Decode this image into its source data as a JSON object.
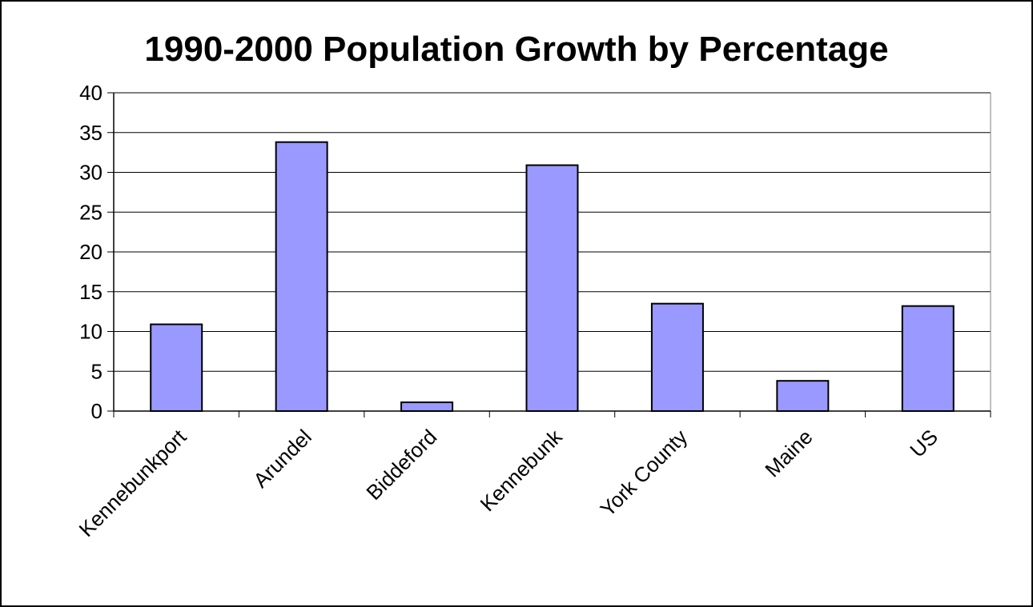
{
  "chart_data": {
    "type": "bar",
    "title": "1990-2000 Population Growth by Percentage",
    "xlabel": "",
    "ylabel": "",
    "categories": [
      "Kennebunkport",
      "Arundel",
      "Biddeford",
      "Kennebunk",
      "York County",
      "Maine",
      "US"
    ],
    "values": [
      10.9,
      33.8,
      1.1,
      30.9,
      13.5,
      3.8,
      13.2
    ],
    "ylim": [
      0,
      40
    ],
    "yticks": [
      "0",
      "5",
      "10",
      "15",
      "20",
      "25",
      "30",
      "35",
      "40"
    ],
    "grid": true,
    "legend": "none",
    "colors": {
      "bar_fill": "#9999ff",
      "bar_stroke": "#000000",
      "plot_background": "#ffffff",
      "gridline": "#000000"
    }
  }
}
